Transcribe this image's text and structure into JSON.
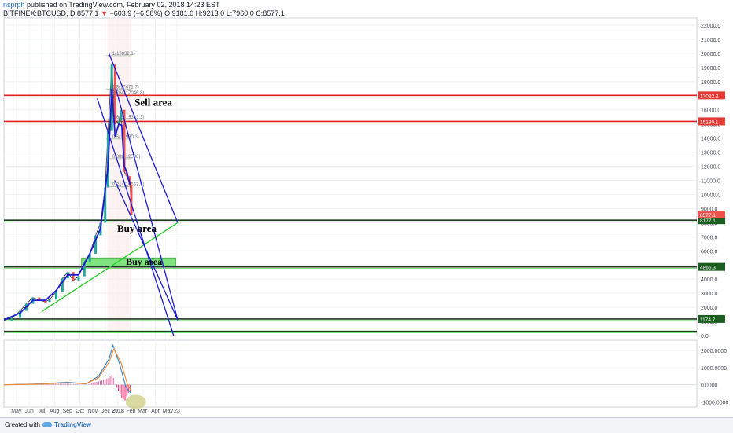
{
  "header": {
    "author": "nsprph",
    "published_text": "published on TradingView.com, February 02, 2018 14:23 EST",
    "symbol": "BITFINEX:BTCUSD, D",
    "last": "8577.1",
    "change": "−603.9 (−6.58%)",
    "open": "O:9181.0",
    "high": "H:9213.0",
    "low": "L:7960.0",
    "close": "C:8577.1"
  },
  "footer": {
    "created_with": "Created with",
    "brand": "TradingView"
  },
  "colors": {
    "up": "#26a69a",
    "down": "#ef5350",
    "ma": "#1a1ad6",
    "support": "#2a8a2a",
    "resistance": "#e02020",
    "buy_zone": "#7ee27e"
  },
  "chart_data": {
    "type": "line",
    "main_panel": {
      "y_ticks": [
        "22000.0",
        "21000.0",
        "20000.0",
        "19000.0",
        "18000.0",
        "17000.0",
        "16000.0",
        "15000.0",
        "14000.0",
        "13000.0",
        "12000.0",
        "11000.0",
        "10000.0",
        "9000.0",
        "8000.0",
        "7000.0",
        "6000.0",
        "5000.0",
        "4000.0",
        "3000.0",
        "2000.0",
        "1000.0",
        "0.0"
      ],
      "ylim": [
        0,
        22500
      ],
      "x_ticks": [
        "May",
        "Jun",
        "Jul",
        "Aug",
        "Sep",
        "Oct",
        "Nov",
        "Dec",
        "2018",
        "Feb",
        "Mar",
        "Apr",
        "May",
        "23"
      ],
      "price_line": {
        "x": [
          "2017-04-01",
          "2017-04-20",
          "2017-05-10",
          "2017-05-25",
          "2017-06-10",
          "2017-06-25",
          "2017-07-10",
          "2017-07-20",
          "2017-08-05",
          "2017-08-20",
          "2017-09-02",
          "2017-09-15",
          "2017-09-28",
          "2017-10-12",
          "2017-10-25",
          "2017-11-08",
          "2017-11-20",
          "2017-12-01",
          "2017-12-08",
          "2017-12-17",
          "2017-12-25",
          "2018-01-03",
          "2018-01-08",
          "2018-01-16",
          "2018-01-22",
          "2018-01-30",
          "2018-02-02"
        ],
        "values": [
          1100,
          1250,
          1750,
          2250,
          2700,
          2500,
          2400,
          2550,
          3100,
          4050,
          4500,
          3900,
          4200,
          5200,
          5800,
          7100,
          8000,
          10500,
          14500,
          19200,
          15000,
          15200,
          16000,
          11600,
          11300,
          10700,
          8577
        ]
      },
      "moving_average": {
        "x": [
          "2017-04-01",
          "2017-05-10",
          "2017-06-10",
          "2017-07-10",
          "2017-08-05",
          "2017-09-02",
          "2017-09-28",
          "2017-10-25",
          "2017-11-20",
          "2017-12-08",
          "2017-12-17",
          "2017-12-25",
          "2018-01-03",
          "2018-01-10",
          "2018-01-16",
          "2018-01-22",
          "2018-01-30"
        ],
        "values": [
          1100,
          1600,
          2500,
          2500,
          3200,
          4300,
          4300,
          5800,
          7600,
          12000,
          17500,
          14100,
          15000,
          14900,
          12000,
          11600,
          10700
        ]
      },
      "horizontal_levels": [
        {
          "label": "17022.2",
          "value": 17022.2,
          "kind": "resistance"
        },
        {
          "label": "15180.1",
          "value": 15180.1,
          "kind": "resistance"
        },
        {
          "label": "8177.1",
          "value": 8177.1,
          "kind": "support"
        },
        {
          "label": "4865.3",
          "value": 4865.3,
          "kind": "support"
        },
        {
          "label": "1174.7",
          "value": 1174.7,
          "kind": "support"
        },
        {
          "label": "",
          "value": 300,
          "kind": "support"
        }
      ],
      "current_price_label": "8577.1",
      "fibonacci": [
        {
          "label": "1(19832.1)",
          "value": 19832.1
        },
        {
          "label": "0.8(17471.7)",
          "value": 17471.7
        },
        {
          "label": "0.764(17046.8)",
          "value": 17046.8
        },
        {
          "label": "0.618(15323.3)",
          "value": 15323.3
        },
        {
          "label": "0.5(13930.3)",
          "value": 13930.3
        },
        {
          "label": "0.382(12538)",
          "value": 12538
        },
        {
          "label": "0.214(10553.8)",
          "value": 10553.8
        }
      ],
      "zones": [
        {
          "label": "Buy area",
          "from_date": "2017-10-05",
          "to_date": "2018-05-20",
          "low": 4865.3,
          "high": 5500
        }
      ],
      "trendlines": [
        {
          "from_date": "2017-07-01",
          "from_value": 1700,
          "to_date": "2018-05-25",
          "to_value": 8000,
          "kind": "support"
        },
        {
          "from_date": "2017-12-10",
          "from_value": 20000,
          "to_date": "2018-05-25",
          "to_value": 8000,
          "kind": "channel"
        },
        {
          "from_date": "2017-12-27",
          "from_value": 17500,
          "to_date": "2018-05-25",
          "to_value": 1100,
          "kind": "channel"
        },
        {
          "from_date": "2017-11-12",
          "from_value": 16800,
          "to_date": "2018-05-15",
          "to_value": 0,
          "kind": "channel"
        },
        {
          "from_date": "2017-12-24",
          "from_value": 11000,
          "to_date": "2018-05-25",
          "to_value": 1100,
          "kind": "channel"
        }
      ],
      "annotations": [
        "Sell area",
        "Buy area",
        "Buy area"
      ]
    },
    "oscillator_panel": {
      "y_ticks": [
        "2000.0000",
        "1000.0000",
        "0.0000",
        "-1000.0000"
      ],
      "ylim": [
        -1300,
        2600
      ],
      "macd": {
        "x": [
          "2017-04-01",
          "2017-07-01",
          "2017-09-01",
          "2017-10-15",
          "2017-11-15",
          "2017-12-10",
          "2017-12-20",
          "2018-01-05",
          "2018-01-20",
          "2018-02-02"
        ],
        "values": [
          0,
          50,
          150,
          50,
          500,
          1500,
          2300,
          1200,
          -150,
          -500
        ]
      },
      "signal": {
        "x": [
          "2017-04-01",
          "2017-07-01",
          "2017-09-01",
          "2017-10-15",
          "2017-11-15",
          "2017-12-10",
          "2017-12-22",
          "2018-01-08",
          "2018-01-24",
          "2018-02-02"
        ],
        "values": [
          0,
          40,
          120,
          60,
          400,
          1300,
          2100,
          1300,
          0,
          -350
        ]
      }
    }
  }
}
